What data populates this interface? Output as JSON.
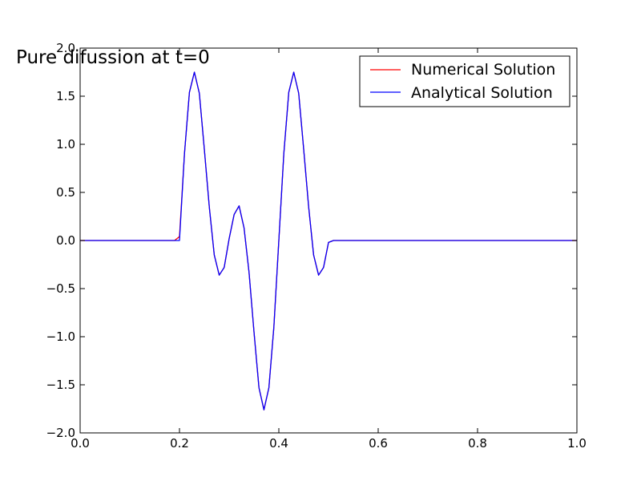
{
  "chart_data": {
    "type": "line",
    "title": "Pure difussion at t=0",
    "xlabel": "",
    "ylabel": "",
    "xlim": [
      0.0,
      1.0
    ],
    "ylim": [
      -2.0,
      2.0
    ],
    "xticks": [
      0.0,
      0.2,
      0.4,
      0.6,
      0.8,
      1.0
    ],
    "xtick_labels": [
      "0.0",
      "0.2",
      "0.4",
      "0.6",
      "0.8",
      "1.0"
    ],
    "yticks": [
      -2.0,
      -1.5,
      -1.0,
      -0.5,
      0.0,
      0.5,
      1.0,
      1.5,
      2.0
    ],
    "ytick_labels": [
      "−2.0",
      "−1.5",
      "−1.0",
      "−0.5",
      "0.0",
      "0.5",
      "1.0",
      "1.5",
      "2.0"
    ],
    "grid": false,
    "legend_position": "top-right",
    "series": [
      {
        "name": "Numerical Solution",
        "color": "#ff0000",
        "x": [
          0.0,
          0.1,
          0.19,
          0.2,
          0.21,
          0.22,
          0.23,
          0.24,
          0.25,
          0.26,
          0.27,
          0.28,
          0.29,
          0.3,
          0.31,
          0.32,
          0.33,
          0.34,
          0.35,
          0.36,
          0.37,
          0.38,
          0.39,
          0.4,
          0.41,
          0.42,
          0.43,
          0.44,
          0.45,
          0.46,
          0.47,
          0.48,
          0.49,
          0.5,
          0.51,
          0.6,
          0.8,
          1.0
        ],
        "y": [
          0.0,
          0.0,
          0.0,
          0.04,
          0.9,
          1.54,
          1.75,
          1.53,
          0.95,
          0.35,
          -0.15,
          -0.36,
          -0.28,
          0.02,
          0.27,
          0.36,
          0.13,
          -0.33,
          -0.95,
          -1.53,
          -1.76,
          -1.53,
          -0.9,
          0.0,
          0.9,
          1.54,
          1.75,
          1.53,
          0.95,
          0.35,
          -0.15,
          -0.36,
          -0.28,
          -0.02,
          0.0,
          0.0,
          0.0,
          0.0
        ]
      },
      {
        "name": "Analytical Solution",
        "color": "#0000ff",
        "x": [
          0.0,
          0.1,
          0.19,
          0.2,
          0.21,
          0.22,
          0.23,
          0.24,
          0.25,
          0.26,
          0.27,
          0.28,
          0.29,
          0.3,
          0.31,
          0.32,
          0.33,
          0.34,
          0.35,
          0.36,
          0.37,
          0.38,
          0.39,
          0.4,
          0.41,
          0.42,
          0.43,
          0.44,
          0.45,
          0.46,
          0.47,
          0.48,
          0.49,
          0.5,
          0.51,
          0.6,
          0.8,
          1.0
        ],
        "y": [
          0.0,
          0.0,
          0.0,
          0.0,
          0.9,
          1.54,
          1.75,
          1.53,
          0.95,
          0.35,
          -0.15,
          -0.36,
          -0.28,
          0.02,
          0.27,
          0.36,
          0.13,
          -0.33,
          -0.95,
          -1.53,
          -1.76,
          -1.53,
          -0.9,
          0.0,
          0.9,
          1.54,
          1.75,
          1.53,
          0.95,
          0.35,
          -0.15,
          -0.36,
          -0.28,
          -0.02,
          0.0,
          0.0,
          0.0,
          0.0
        ]
      }
    ]
  }
}
